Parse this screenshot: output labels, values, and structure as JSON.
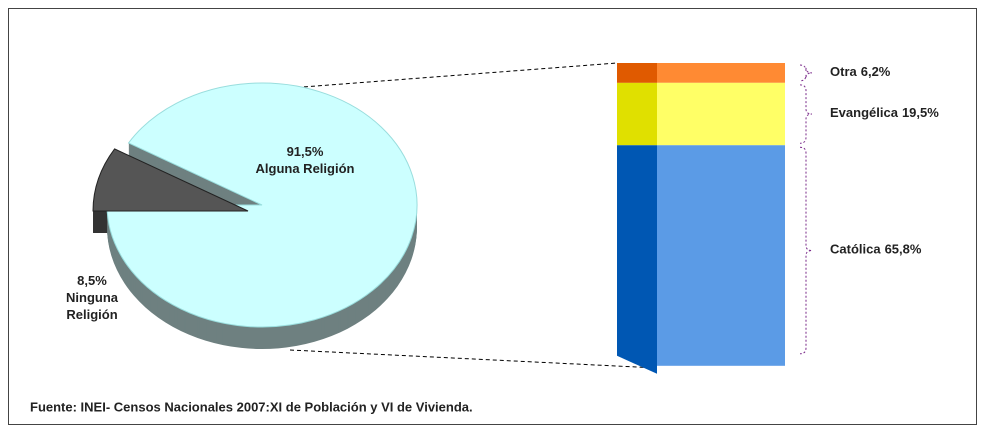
{
  "chart_data": {
    "type": "pie-of-bar",
    "pie": {
      "categories": [
        "Alguna Religión",
        "Ninguna Religión"
      ],
      "values": [
        91.5,
        8.5
      ],
      "value_labels": [
        "91,5%",
        "8,5%"
      ],
      "colors": [
        "#ccffff",
        "#555555"
      ],
      "side_colors": [
        "#6e8080",
        "#333333"
      ]
    },
    "bar": {
      "categories": [
        "Otra",
        "Evangélica",
        "Católica"
      ],
      "values": [
        6.2,
        19.5,
        65.8
      ],
      "value_labels": [
        "6,2%",
        "19,5%",
        "65,8%"
      ],
      "colors": [
        "#ff8a33",
        "#ffff66",
        "#5b9be6"
      ],
      "side_colors": [
        "#e05a00",
        "#e0e000",
        "#0057b3"
      ]
    },
    "source": "Fuente: INEI- Censos Nacionales 2007:XI de Población y VI  de Vivienda."
  }
}
